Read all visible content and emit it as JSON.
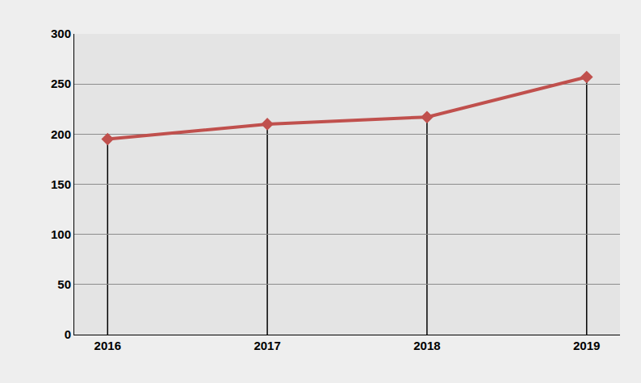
{
  "chart_data": {
    "type": "line",
    "categories": [
      "2016",
      "2017",
      "2018",
      "2019"
    ],
    "values": [
      195,
      210,
      217,
      257
    ],
    "color": "#c0504d",
    "marker": "diamond",
    "line_style": "solid",
    "ylim": [
      0,
      300
    ],
    "yticks": [
      0,
      50,
      100,
      150,
      200,
      250,
      300
    ],
    "grid": true
  }
}
